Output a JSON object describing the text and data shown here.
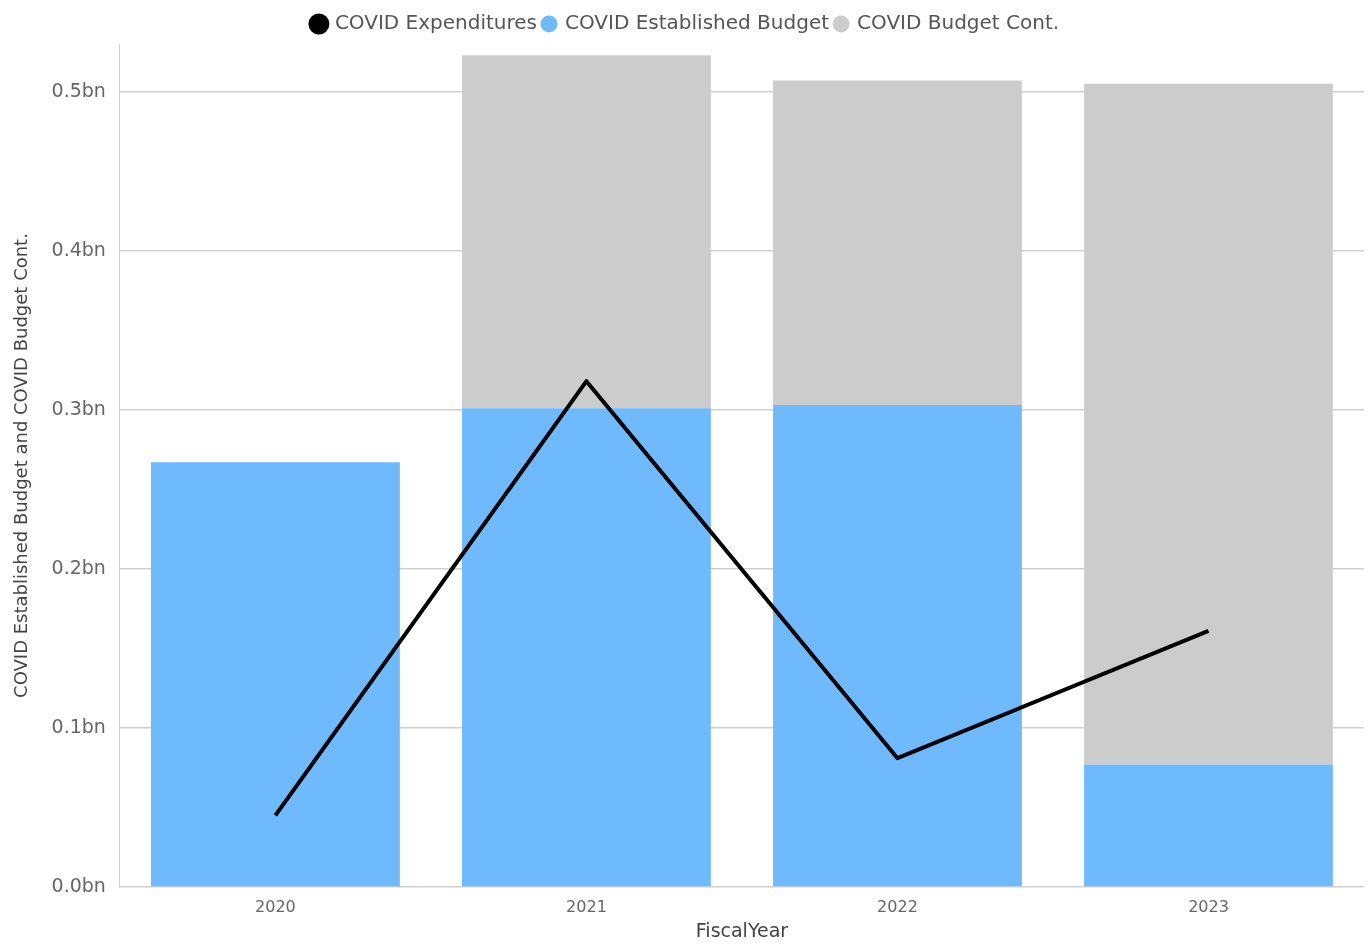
{
  "chart_data": {
    "type": "bar",
    "stacked": true,
    "xlabel": "FiscalYear",
    "ylabel": "COVID Established Budget and COVID Budget Cont.",
    "categories": [
      "2020",
      "2021",
      "2022",
      "2023"
    ],
    "series": [
      {
        "name": "COVID Established Budget",
        "color": "#6fb9fd",
        "values": [
          0.267,
          0.301,
          0.303,
          0.077
        ]
      },
      {
        "name": "COVID Budget Cont.",
        "color": "#cccccc",
        "values": [
          null,
          0.222,
          0.204,
          0.428
        ]
      },
      {
        "name": "COVID Expenditures",
        "type": "line",
        "color": "#000000",
        "values": [
          0.045,
          0.318,
          0.081,
          0.161
        ]
      }
    ],
    "ylim": [
      0,
      0.53
    ],
    "yticks": [
      {
        "value": 0,
        "label": "0.0bn"
      },
      {
        "value": 0.1,
        "label": "0.1bn"
      },
      {
        "value": 0.2,
        "label": "0.2bn"
      },
      {
        "value": 0.3,
        "label": "0.3bn"
      },
      {
        "value": 0.4,
        "label": "0.4bn"
      },
      {
        "value": 0.5,
        "label": "0.5bn"
      }
    ],
    "grid": "y",
    "legend": "top",
    "marker": "none",
    "line_style": "solid"
  }
}
